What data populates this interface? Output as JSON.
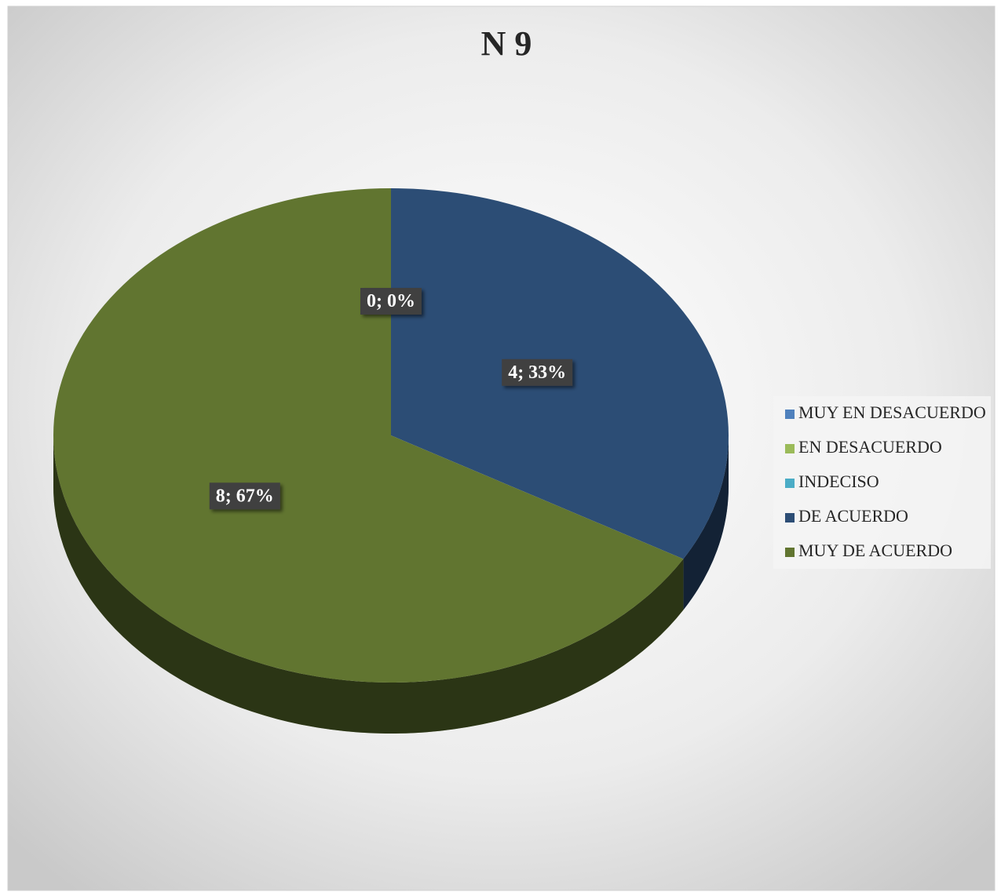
{
  "chart_data": {
    "type": "pie",
    "title": "N 9",
    "categories": [
      "MUY EN DESACUERDO",
      "EN DESACUERDO",
      "INDECISO",
      "DE ACUERDO",
      "MUY DE ACUERDO"
    ],
    "values": [
      0,
      0,
      0,
      4,
      8
    ],
    "value_labels": [
      "0; 0%",
      null,
      null,
      "4; 33%",
      "8; 67%"
    ],
    "colors": [
      "#4f81bd",
      "#9bbb59",
      "#4bacc6",
      "#2c4d75",
      "#617530"
    ],
    "legend": "right"
  }
}
